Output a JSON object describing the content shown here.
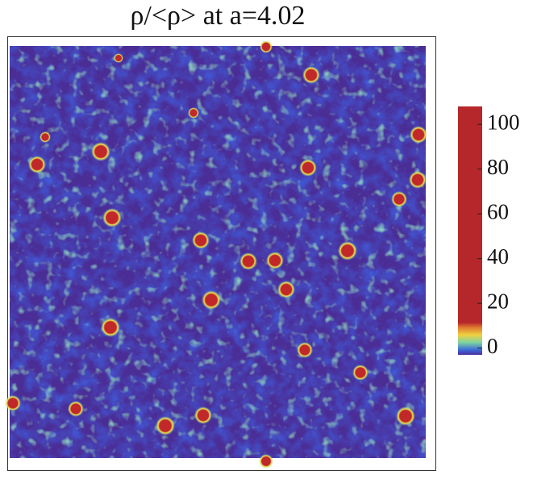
{
  "chart_data": {
    "type": "heatmap",
    "title": "ρ/<ρ> at a=4.02",
    "colorbar": {
      "lim": [
        -3,
        108
      ],
      "ticks": [
        0,
        20,
        40,
        60,
        80,
        100
      ]
    }
  }
}
